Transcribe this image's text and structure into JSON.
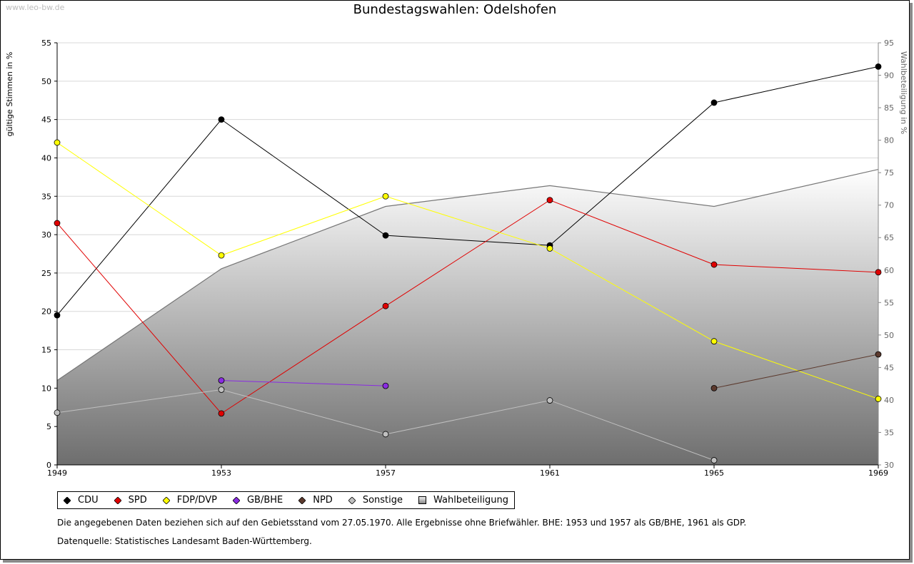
{
  "watermark": "www.leo-bw.de",
  "chart_data": {
    "type": "line",
    "title": "Bundestagswahlen: Odelshofen",
    "ylabel": "gültige Stimmen in %",
    "ylabel_right": "Wahlbeteiligung in %",
    "x": [
      "1949",
      "1953",
      "1957",
      "1961",
      "1965",
      "1969"
    ],
    "ylim": [
      0,
      55
    ],
    "ylim_right": [
      30,
      95
    ],
    "yticks": [
      0,
      5,
      10,
      15,
      20,
      25,
      30,
      35,
      40,
      45,
      50,
      55
    ],
    "yticks_right": [
      30,
      35,
      40,
      45,
      50,
      55,
      60,
      65,
      70,
      75,
      80,
      85,
      90,
      95
    ],
    "grid": true,
    "legend_position": "bottom",
    "series": [
      {
        "name": "CDU",
        "color": "#000000",
        "values": [
          19.5,
          45.0,
          29.9,
          28.6,
          47.2,
          51.9
        ]
      },
      {
        "name": "SPD",
        "color": "#e00000",
        "values": [
          31.5,
          6.7,
          20.7,
          34.5,
          26.1,
          25.1
        ]
      },
      {
        "name": "FDP/DVP",
        "color": "#ffff00",
        "values": [
          42.0,
          27.3,
          35.0,
          28.2,
          16.1,
          8.6
        ]
      },
      {
        "name": "GB/BHE",
        "color": "#8a2be2",
        "values": [
          null,
          11.0,
          10.3,
          null,
          null,
          null
        ]
      },
      {
        "name": "NPD",
        "color": "#5c3a2e",
        "values": [
          null,
          null,
          null,
          null,
          10.0,
          14.4
        ]
      },
      {
        "name": "Sonstige",
        "color": "#c0c0c0",
        "values": [
          6.8,
          9.8,
          4.0,
          8.4,
          0.6,
          null
        ]
      }
    ],
    "area_series": {
      "name": "Wahlbeteiligung",
      "axis": "right",
      "values": [
        43.0,
        60.2,
        69.8,
        73.0,
        69.8,
        75.5
      ]
    }
  },
  "note": "Die angegebenen Daten beziehen sich auf den Gebietsstand vom 27.05.1970. Alle Ergebnisse ohne Briefwähler. BHE: 1953 und 1957 als GB/BHE, 1961 als GDP.",
  "source": "Datenquelle: Statistisches Landesamt Baden-Württemberg."
}
